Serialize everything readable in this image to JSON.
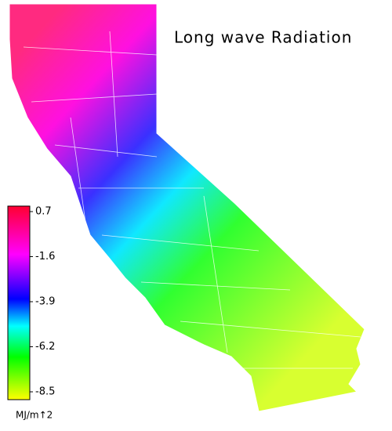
{
  "title": "Long wave Radiation",
  "legend": {
    "ticks": [
      0.7,
      -1.6,
      -3.9,
      -6.2,
      -8.5
    ],
    "unit": "MJ/m↑2"
  }
}
